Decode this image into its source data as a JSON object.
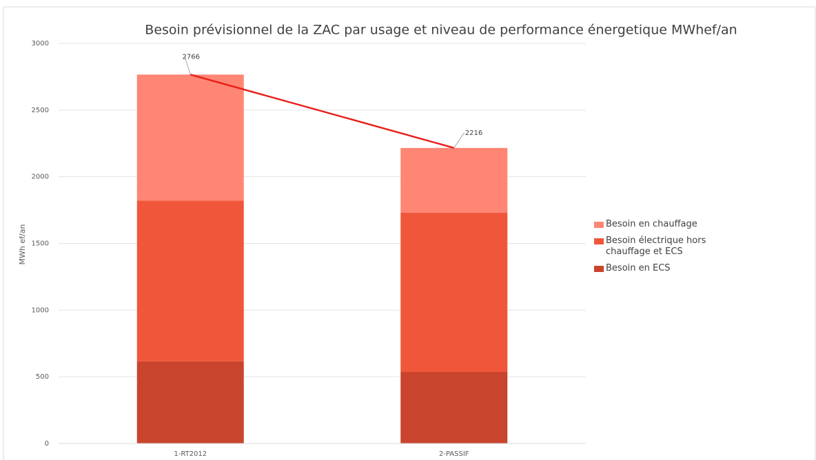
{
  "chart_data": {
    "type": "bar",
    "stacked": true,
    "title": "Besoin prévisionnel de la ZAC par usage et niveau de performance énergetique MWhef/an",
    "ylabel": "MWh ef/an",
    "categories": [
      "1-RT2012",
      "2-PASSIF"
    ],
    "series": [
      {
        "name": "Besoin en ECS",
        "color": "#c9442d",
        "values": [
          615,
          537
        ]
      },
      {
        "name": "Besoin électrique hors chauffage et ECS",
        "color": "#f0573a",
        "values": [
          1205,
          1193
        ]
      },
      {
        "name": "Besoin en chauffage",
        "color": "#ff8674",
        "values": [
          946,
          486
        ]
      }
    ],
    "line": {
      "type": "line",
      "color": "#e8201a",
      "values": [
        2766,
        2216
      ]
    },
    "ylim": [
      0,
      3000
    ],
    "yticks": [
      0,
      500,
      1000,
      1500,
      2000,
      2500,
      3000
    ],
    "grid": true,
    "legend": "right"
  }
}
